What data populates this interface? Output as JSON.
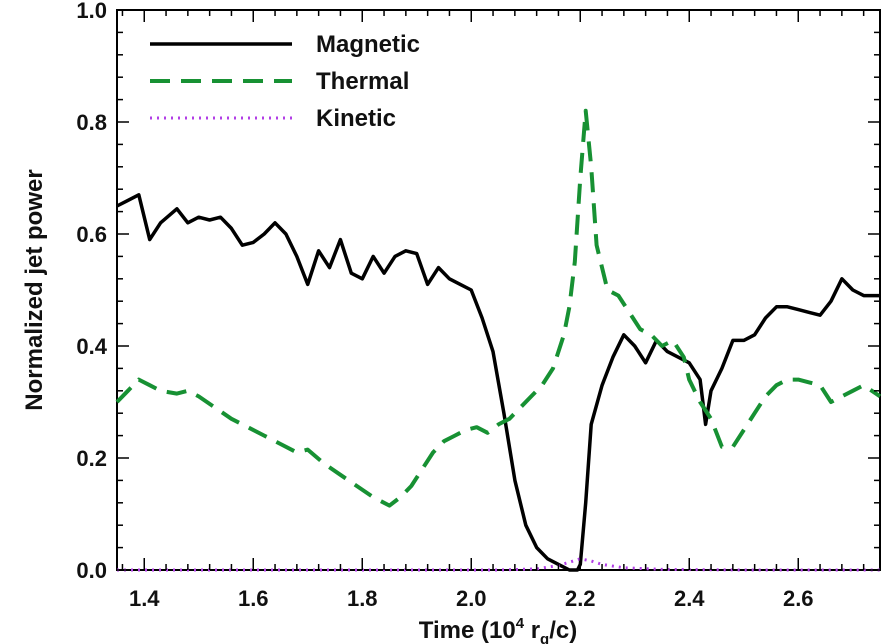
{
  "chart_data": {
    "type": "line",
    "xlabel": "Time (10",
    "xlabel_sup": "4",
    "xlabel_unit": " r",
    "xlabel_sub": "g",
    "xlabel_end": "/c)",
    "ylabel": "Normalized jet power",
    "xlim": [
      1.35,
      2.75
    ],
    "ylim": [
      0.0,
      1.0
    ],
    "xticks": [
      "1.4",
      "1.6",
      "1.8",
      "2.0",
      "2.2",
      "2.4",
      "2.6"
    ],
    "xtick_values": [
      1.4,
      1.6,
      1.8,
      2.0,
      2.2,
      2.4,
      2.6
    ],
    "yticks": [
      "0.0",
      "0.2",
      "0.4",
      "0.6",
      "0.8",
      "1.0"
    ],
    "ytick_values": [
      0.0,
      0.2,
      0.4,
      0.6,
      0.8,
      1.0
    ],
    "grid": false,
    "legend_position": "top-left",
    "series": [
      {
        "name": "Magnetic",
        "color": "#000000",
        "style": "solid",
        "x": [
          1.35,
          1.37,
          1.39,
          1.41,
          1.43,
          1.46,
          1.48,
          1.5,
          1.52,
          1.54,
          1.56,
          1.58,
          1.6,
          1.62,
          1.64,
          1.66,
          1.68,
          1.7,
          1.72,
          1.74,
          1.76,
          1.78,
          1.8,
          1.82,
          1.84,
          1.86,
          1.88,
          1.9,
          1.92,
          1.94,
          1.96,
          1.98,
          2.0,
          2.02,
          2.04,
          2.06,
          2.08,
          2.1,
          2.12,
          2.14,
          2.16,
          2.18,
          2.195,
          2.2,
          2.21,
          2.22,
          2.24,
          2.26,
          2.28,
          2.3,
          2.32,
          2.34,
          2.36,
          2.38,
          2.4,
          2.42,
          2.43,
          2.44,
          2.46,
          2.48,
          2.5,
          2.52,
          2.54,
          2.56,
          2.58,
          2.6,
          2.62,
          2.64,
          2.66,
          2.68,
          2.7,
          2.72,
          2.75
        ],
        "y": [
          0.65,
          0.66,
          0.67,
          0.59,
          0.62,
          0.645,
          0.62,
          0.63,
          0.625,
          0.63,
          0.61,
          0.58,
          0.585,
          0.6,
          0.62,
          0.6,
          0.56,
          0.51,
          0.57,
          0.54,
          0.59,
          0.53,
          0.52,
          0.56,
          0.53,
          0.56,
          0.57,
          0.565,
          0.51,
          0.54,
          0.52,
          0.51,
          0.5,
          0.45,
          0.39,
          0.28,
          0.16,
          0.08,
          0.04,
          0.02,
          0.01,
          0.0,
          0.0,
          0.01,
          0.12,
          0.26,
          0.33,
          0.38,
          0.42,
          0.4,
          0.37,
          0.41,
          0.39,
          0.38,
          0.37,
          0.34,
          0.26,
          0.32,
          0.36,
          0.41,
          0.41,
          0.42,
          0.45,
          0.47,
          0.47,
          0.465,
          0.46,
          0.455,
          0.48,
          0.52,
          0.5,
          0.49,
          0.49
        ]
      },
      {
        "name": "Thermal",
        "color": "#179133",
        "style": "dashed",
        "x": [
          1.35,
          1.37,
          1.39,
          1.41,
          1.43,
          1.46,
          1.48,
          1.5,
          1.53,
          1.56,
          1.59,
          1.62,
          1.65,
          1.68,
          1.7,
          1.73,
          1.76,
          1.79,
          1.82,
          1.85,
          1.87,
          1.89,
          1.91,
          1.93,
          1.95,
          1.97,
          1.99,
          2.01,
          2.03,
          2.05,
          2.07,
          2.09,
          2.11,
          2.13,
          2.15,
          2.17,
          2.18,
          2.19,
          2.2,
          2.21,
          2.22,
          2.23,
          2.25,
          2.27,
          2.29,
          2.31,
          2.33,
          2.35,
          2.37,
          2.39,
          2.4,
          2.42,
          2.44,
          2.46,
          2.48,
          2.5,
          2.52,
          2.54,
          2.56,
          2.58,
          2.6,
          2.62,
          2.64,
          2.66,
          2.68,
          2.7,
          2.72,
          2.75
        ],
        "y": [
          0.3,
          0.32,
          0.34,
          0.33,
          0.32,
          0.315,
          0.32,
          0.31,
          0.29,
          0.27,
          0.255,
          0.24,
          0.225,
          0.21,
          0.215,
          0.19,
          0.17,
          0.15,
          0.13,
          0.115,
          0.13,
          0.15,
          0.18,
          0.21,
          0.23,
          0.24,
          0.25,
          0.255,
          0.245,
          0.26,
          0.27,
          0.29,
          0.31,
          0.33,
          0.36,
          0.42,
          0.47,
          0.55,
          0.7,
          0.82,
          0.72,
          0.58,
          0.5,
          0.49,
          0.46,
          0.43,
          0.42,
          0.4,
          0.41,
          0.38,
          0.34,
          0.3,
          0.27,
          0.22,
          0.22,
          0.25,
          0.28,
          0.31,
          0.33,
          0.34,
          0.34,
          0.335,
          0.33,
          0.3,
          0.31,
          0.32,
          0.33,
          0.31
        ]
      },
      {
        "name": "Kinetic",
        "color": "#b23ee6",
        "style": "dotted",
        "x": [
          1.35,
          1.5,
          1.7,
          1.9,
          2.05,
          2.12,
          2.16,
          2.18,
          2.2,
          2.22,
          2.24,
          2.28,
          2.35,
          2.5,
          2.75
        ],
        "y": [
          0.0,
          0.0,
          0.0,
          0.0,
          0.0,
          0.002,
          0.008,
          0.014,
          0.02,
          0.016,
          0.01,
          0.004,
          0.001,
          0.0,
          0.0
        ]
      }
    ]
  }
}
